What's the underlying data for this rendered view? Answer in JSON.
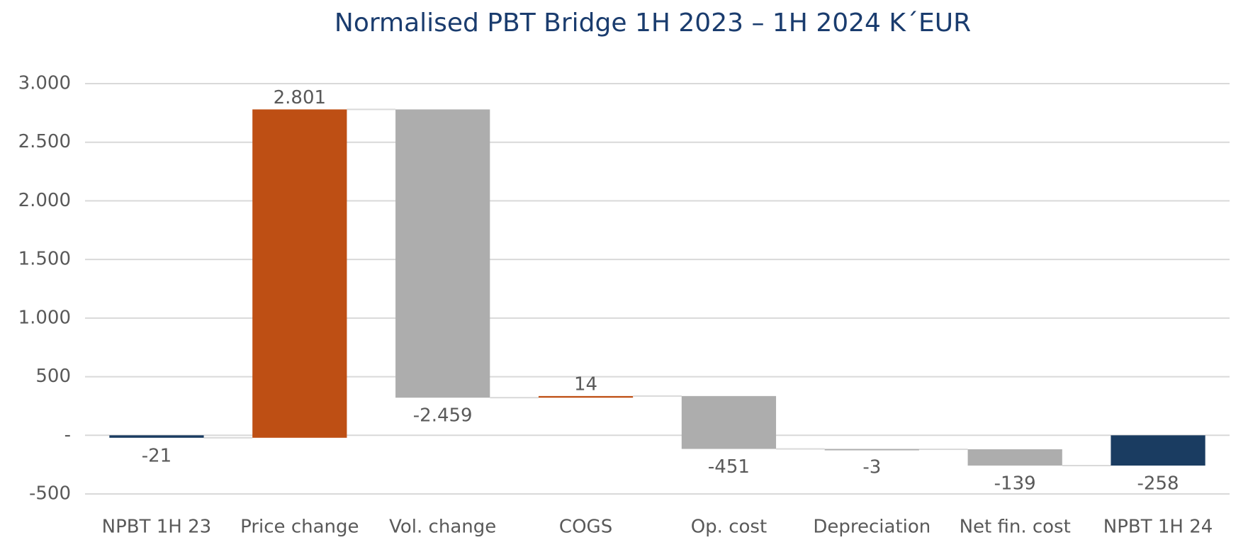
{
  "chart_data": {
    "type": "waterfall",
    "title": "Normalised PBT Bridge 1H 2023 – 1H 2024 K´EUR",
    "categories": [
      "NPBT 1H  23",
      "Price change",
      "Vol. change",
      "COGS",
      "Op. cost",
      "Depreciation",
      "Net fin. cost",
      "NPBT 1H  24"
    ],
    "measure": [
      "total",
      "relative",
      "relative",
      "relative",
      "relative",
      "relative",
      "relative",
      "total"
    ],
    "values": [
      -21,
      2801,
      -2459,
      14,
      -451,
      -3,
      -139,
      -258
    ],
    "value_labels": [
      "-21",
      "2.801",
      "-2.459",
      "14",
      "-451",
      "-3",
      "-139",
      "-258"
    ],
    "colors": {
      "total": "#1a3c61",
      "increase": "#be4f14",
      "decrease": "#adadad"
    },
    "ylim": [
      -500,
      3000
    ],
    "yticks": [
      -500,
      {
        "value": 0,
        "label": "-"
      },
      500,
      {
        "value": 1000,
        "label": "1.000"
      },
      {
        "value": 1500,
        "label": "1.500"
      },
      {
        "value": 2000,
        "label": "2.000"
      },
      {
        "value": 2500,
        "label": "2.500"
      },
      {
        "value": 3000,
        "label": "3.000"
      }
    ],
    "grid": true
  }
}
